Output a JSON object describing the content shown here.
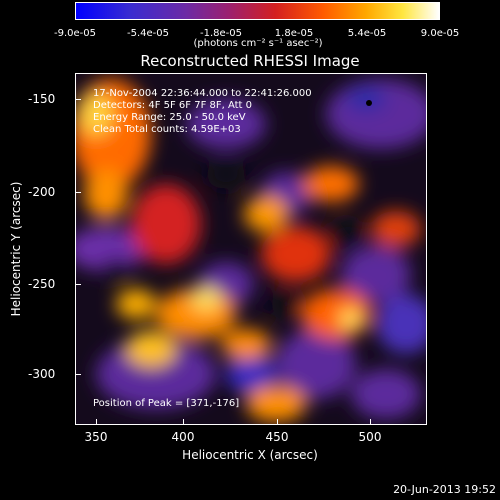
{
  "colorbar": {
    "ticks": [
      "-9.0e-05",
      "-5.4e-05",
      "-1.8e-05",
      "1.8e-05",
      "5.4e-05",
      "9.0e-05"
    ],
    "unit_label": "(photons cm⁻² s⁻¹ asec⁻²)"
  },
  "title": "Reconstructed RHESSI Image",
  "info": {
    "line1": "17-Nov-2004 22:36:44.000 to 22:41:26.000",
    "line2": "Detectors: 4F 5F 6F 7F 8F, Att 0",
    "line3": "Energy Range: 25.0 - 50.0 keV",
    "line4": "Clean    Total counts: 4.59E+03",
    "peak": "Position of Peak = [371,-176]"
  },
  "axes": {
    "xlabel": "Heliocentric X (arcsec)",
    "ylabel": "Heliocentric Y (arcsec)",
    "xticks": [
      "350",
      "400",
      "450",
      "500"
    ],
    "yticks": [
      "-150",
      "-200",
      "-250",
      "-300"
    ]
  },
  "footer": {
    "date": "20-Jun-2013 19:52"
  }
}
